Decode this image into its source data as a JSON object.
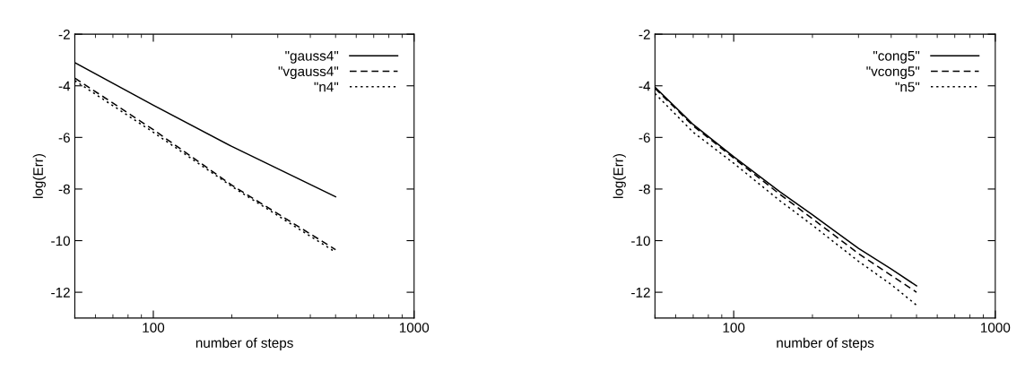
{
  "chart_data": [
    {
      "type": "line",
      "xlabel": "number of steps",
      "ylabel": "log(Err)",
      "log": "x",
      "xlim": [
        50,
        1000
      ],
      "xticks": [
        100,
        1000
      ],
      "ylim": [
        -13,
        -2
      ],
      "yticks": [
        -2,
        -4,
        -6,
        -8,
        -10,
        -12
      ],
      "grid": false,
      "legend": "top right",
      "marker": "none",
      "series": [
        {
          "name": "\"gauss4\"",
          "color": "#000000",
          "line_style": "solid",
          "x": [
            50,
            100,
            200,
            500
          ],
          "values": [
            -3.1,
            -4.75,
            -6.35,
            -8.3
          ]
        },
        {
          "name": "\"vgauss4\"",
          "color": "#000000",
          "line_style": "dashed",
          "x": [
            50,
            100,
            200,
            500
          ],
          "values": [
            -3.7,
            -5.7,
            -7.85,
            -10.35
          ]
        },
        {
          "name": "\"n4\"",
          "color": "#000000",
          "line_style": "dotted",
          "x": [
            50,
            100,
            200,
            500
          ],
          "values": [
            -3.8,
            -5.8,
            -7.9,
            -10.45
          ]
        }
      ]
    },
    {
      "type": "line",
      "xlabel": "number of steps",
      "ylabel": "log(Err)",
      "log": "x",
      "xlim": [
        50,
        1000
      ],
      "xticks": [
        100,
        1000
      ],
      "ylim": [
        -13,
        -2
      ],
      "yticks": [
        -2,
        -4,
        -6,
        -8,
        -10,
        -12
      ],
      "grid": false,
      "legend": "top right",
      "marker": "none",
      "series": [
        {
          "name": "\"cong5\"",
          "color": "#000000",
          "line_style": "solid",
          "x": [
            50,
            70,
            100,
            150,
            200,
            300,
            400,
            500
          ],
          "values": [
            -4.05,
            -5.5,
            -6.75,
            -8.1,
            -9.0,
            -10.3,
            -11.1,
            -11.75
          ]
        },
        {
          "name": "\"vcong5\"",
          "color": "#000000",
          "line_style": "dashed",
          "x": [
            50,
            70,
            100,
            150,
            200,
            300,
            400,
            500
          ],
          "values": [
            -4.1,
            -5.55,
            -6.8,
            -8.2,
            -9.15,
            -10.5,
            -11.35,
            -12.0
          ]
        },
        {
          "name": "\"n5\"",
          "color": "#000000",
          "line_style": "dotted",
          "x": [
            50,
            70,
            100,
            150,
            200,
            300,
            400,
            500
          ],
          "values": [
            -4.3,
            -5.8,
            -7.0,
            -8.45,
            -9.4,
            -10.8,
            -11.7,
            -12.5
          ]
        }
      ]
    }
  ]
}
